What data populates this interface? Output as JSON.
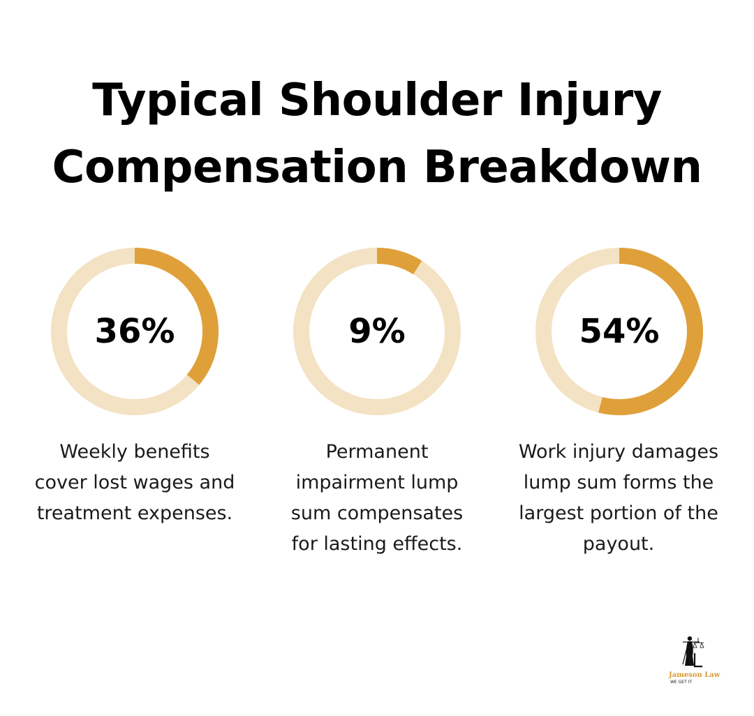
{
  "title_lines": [
    "Typical Shoulder Injury",
    "Compensation Breakdown"
  ],
  "colors": {
    "accent": "#DFA03A",
    "track": "#F3E2C3",
    "text": "#000000"
  },
  "chart_data": {
    "type": "pie",
    "style": "donut",
    "title": "Typical Shoulder Injury Compensation Breakdown",
    "items": [
      {
        "value": 36,
        "label": "36%",
        "description_lines": [
          "Weekly benefits",
          "cover lost wages and",
          "treatment expenses."
        ]
      },
      {
        "value": 9,
        "label": "9%",
        "description_lines": [
          "Permanent",
          "impairment lump",
          "sum compensates",
          "for lasting effects."
        ]
      },
      {
        "value": 54,
        "label": "54%",
        "description_lines": [
          "Work injury damages",
          "lump sum forms the",
          "largest portion of the",
          "payout."
        ]
      }
    ]
  },
  "logo": {
    "name": "Jameson Law",
    "tagline": "WE GET IT",
    "icon": "lady-justice-icon"
  }
}
